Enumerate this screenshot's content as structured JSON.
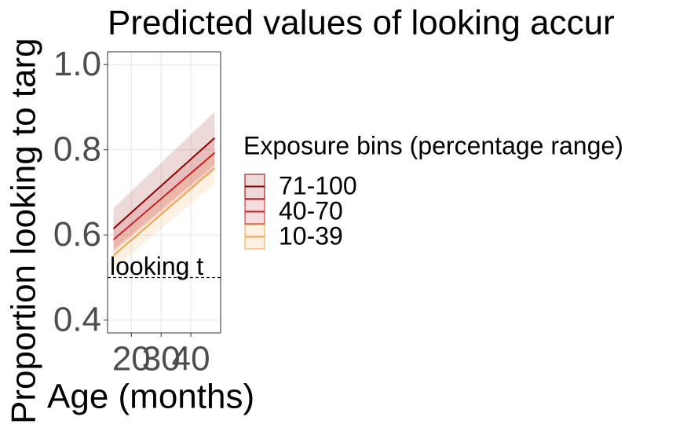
{
  "chart_data": {
    "type": "line",
    "title": "Predicted values of looking accur",
    "x_label": "Age (months)",
    "y_label": "Proportion looking to targ",
    "legend_title": "Exposure bins (percentage range)",
    "annotation": "looking t",
    "hline": 0.5,
    "x": [
      14,
      48
    ],
    "series": [
      {
        "name": "71-100",
        "color": "#8b0000",
        "values": [
          0.615,
          0.828
        ],
        "lower": [
          0.565,
          0.765
        ],
        "upper": [
          0.663,
          0.889
        ]
      },
      {
        "name": "40-70",
        "color": "#cc2222",
        "values": [
          0.589,
          0.793
        ],
        "lower": [
          0.56,
          0.758
        ],
        "upper": [
          0.617,
          0.83
        ]
      },
      {
        "name": "10-39",
        "color": "#f4a14a",
        "values": [
          0.552,
          0.757
        ],
        "lower": [
          0.52,
          0.72
        ],
        "upper": [
          0.582,
          0.792
        ]
      }
    ],
    "xlim": [
      12,
      50
    ],
    "xticks": [
      20,
      30,
      40
    ],
    "ylim": [
      0.37,
      1.03
    ],
    "yticks": [
      {
        "value": 0.4,
        "label": "0.4"
      },
      {
        "value": 0.6,
        "label": "0.6"
      },
      {
        "value": 0.8,
        "label": "0.8"
      },
      {
        "value": 1.0,
        "label": "1.0"
      }
    ],
    "grid": true
  }
}
